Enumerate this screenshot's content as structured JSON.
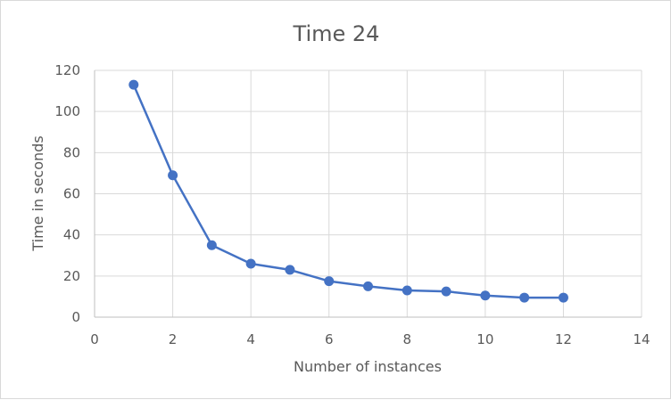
{
  "chart_data": {
    "type": "scatter",
    "title": "Time 24",
    "xlabel": "Number of instances",
    "ylabel": "Time in seconds",
    "xlim": [
      0,
      14
    ],
    "ylim": [
      0,
      120
    ],
    "xticks": [
      0,
      2,
      4,
      6,
      8,
      10,
      12,
      14
    ],
    "yticks": [
      0,
      20,
      40,
      60,
      80,
      100,
      120
    ],
    "grid": true,
    "legend": "none",
    "lines_connected": true,
    "series": [
      {
        "color": "#4472c4",
        "x": [
          1,
          2,
          3,
          4,
          5,
          6,
          7,
          8,
          9,
          10,
          11,
          12
        ],
        "y": [
          113,
          69,
          35,
          26,
          23,
          17.5,
          15,
          13,
          12.5,
          10.5,
          9.5,
          9.5
        ]
      }
    ]
  }
}
